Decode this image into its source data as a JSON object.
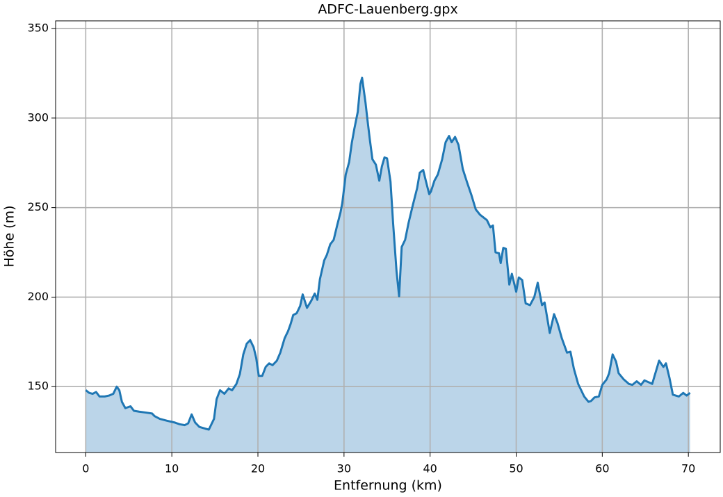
{
  "chart_data": {
    "type": "area",
    "title": "ADFC-Lauenberg.gpx",
    "x_label": "Entfernung (km)",
    "y_label": "Höhe (m)",
    "color": "#1f77b4",
    "fill_color": "#bbd5e9",
    "grid": true,
    "xlim": [
      -3.5,
      73.7
    ],
    "ylim": [
      113.2,
      354.3
    ],
    "xticks": [
      0,
      10,
      20,
      30,
      40,
      50,
      60,
      70
    ],
    "yticks": [
      150,
      200,
      250,
      300,
      350
    ],
    "x": [
      0,
      0.4,
      0.8,
      1.2,
      1.6,
      2.2,
      2.7,
      3.2,
      3.6,
      3.9,
      4.2,
      4.6,
      5.2,
      5.6,
      6.2,
      7.0,
      7.7,
      8.0,
      8.6,
      9.4,
      10.3,
      10.9,
      11.5,
      11.9,
      12.3,
      12.7,
      13.2,
      13.9,
      14.3,
      14.5,
      14.9,
      15.2,
      15.6,
      16.1,
      16.6,
      17.0,
      17.5,
      17.9,
      18.3,
      18.7,
      19.1,
      19.5,
      19.8,
      20.1,
      20.5,
      20.9,
      21.3,
      21.7,
      22.2,
      22.6,
      23.1,
      23.5,
      23.8,
      24.1,
      24.5,
      24.9,
      25.2,
      25.7,
      26.2,
      26.6,
      26.9,
      27.2,
      27.7,
      28.0,
      28.4,
      28.8,
      29.2,
      29.6,
      29.8,
      30.2,
      30.6,
      30.9,
      31.2,
      31.6,
      31.9,
      32.1,
      32.5,
      32.7,
      33.0,
      33.3,
      33.7,
      34.1,
      34.4,
      34.7,
      35.0,
      35.4,
      35.7,
      36.1,
      36.4,
      36.7,
      37.1,
      37.5,
      38.0,
      38.5,
      38.8,
      39.2,
      39.5,
      39.9,
      40.1,
      40.5,
      40.9,
      41.4,
      41.8,
      42.2,
      42.5,
      42.9,
      43.3,
      43.8,
      44.3,
      44.8,
      45.3,
      45.8,
      46.2,
      46.6,
      47.0,
      47.3,
      47.6,
      48.0,
      48.2,
      48.5,
      48.8,
      49.2,
      49.5,
      50.0,
      50.3,
      50.7,
      51.1,
      51.6,
      52.1,
      52.5,
      53.0,
      53.3,
      53.9,
      54.4,
      54.8,
      55.3,
      55.9,
      56.3,
      56.7,
      57.2,
      57.9,
      58.4,
      58.7,
      59.1,
      59.6,
      60.0,
      60.5,
      60.8,
      61.2,
      61.6,
      61.9,
      62.5,
      63.1,
      63.5,
      64.0,
      64.5,
      64.9,
      65.6,
      65.8,
      66.2,
      66.6,
      67.1,
      67.4,
      67.8,
      68.2,
      68.9,
      69.4,
      69.8,
      70.2
    ],
    "values": [
      148,
      146.5,
      146,
      147,
      144.5,
      144.5,
      145,
      146,
      150,
      148,
      141.5,
      138,
      139,
      136.5,
      136,
      135.5,
      135,
      133.5,
      132,
      131,
      130,
      129,
      128.5,
      129.5,
      134.5,
      130,
      127.5,
      126.5,
      126,
      128,
      132,
      143,
      148,
      146,
      149,
      148,
      151.5,
      157,
      168,
      174,
      176,
      172,
      166,
      156,
      156,
      161,
      163,
      162,
      164.5,
      169,
      177,
      181,
      185,
      190,
      191,
      195,
      201.5,
      194,
      198,
      202,
      198.5,
      210,
      220.5,
      223.5,
      229.5,
      232,
      240,
      247.5,
      252.5,
      268.5,
      275.5,
      286,
      294,
      303.5,
      319,
      322.5,
      308.5,
      300,
      288,
      277,
      274,
      265,
      273,
      278,
      277.5,
      264.5,
      241.5,
      214.5,
      200.5,
      228,
      232,
      241.5,
      251.5,
      261,
      269.5,
      271,
      265,
      257.5,
      259,
      265,
      268.5,
      277,
      286.5,
      290,
      286.5,
      289.5,
      285,
      271.5,
      264,
      257,
      249,
      246,
      244.5,
      243,
      239,
      240,
      225,
      224.5,
      219,
      227.5,
      227,
      207,
      213,
      203,
      211,
      209.5,
      196.5,
      195.5,
      200,
      208,
      195.5,
      197,
      180,
      190.5,
      185.5,
      177,
      169,
      169.5,
      160,
      151.5,
      144.5,
      141.5,
      142,
      144,
      144.5,
      151,
      154,
      157.5,
      168,
      164,
      157.5,
      154,
      151.5,
      151,
      153,
      151,
      153.5,
      152,
      151.5,
      158,
      164.5,
      161,
      163,
      155,
      145.5,
      144.5,
      146.5,
      145,
      146.5
    ]
  }
}
